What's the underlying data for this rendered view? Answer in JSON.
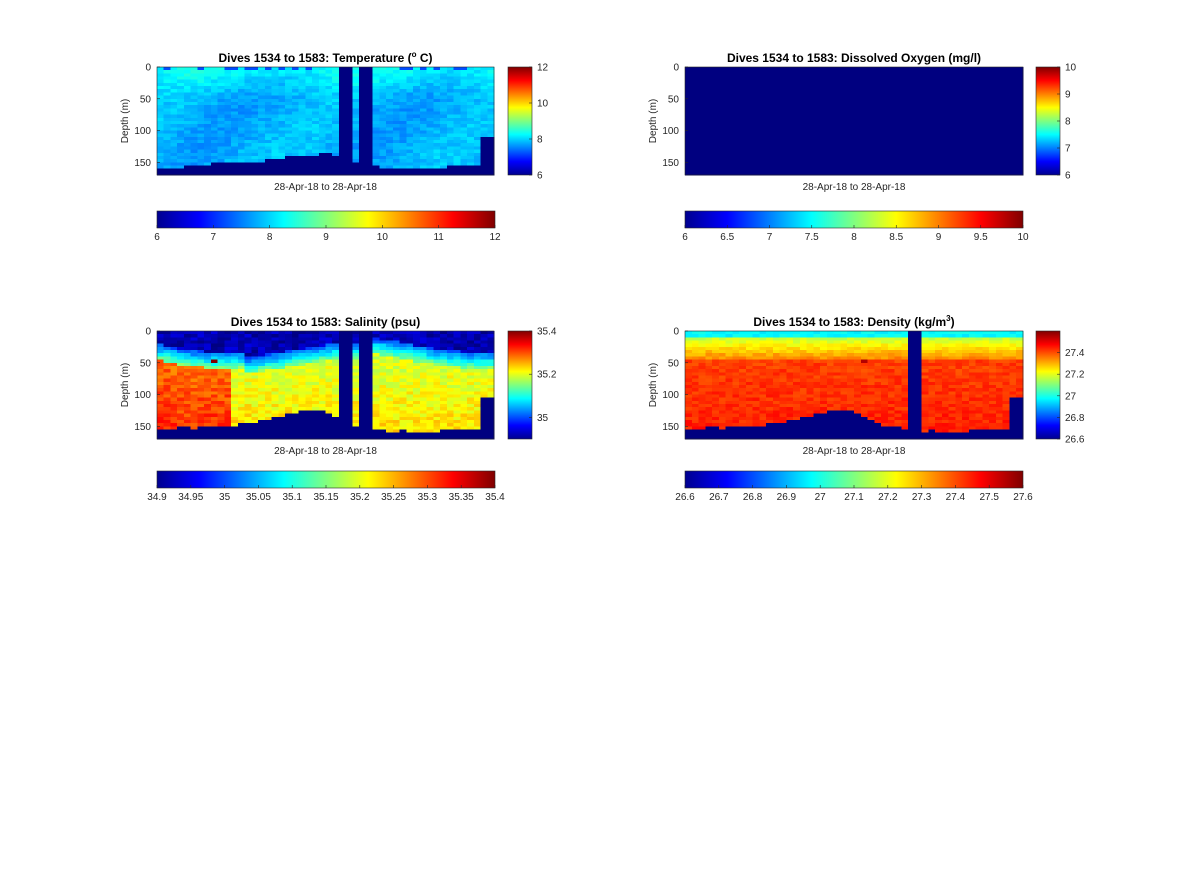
{
  "panels": [
    {
      "id": "temp",
      "title_main": "Dives 1534 to 1583: Temperature (",
      "title_sup": "o",
      "title_tail": " C)",
      "ylabel": "Depth (m)",
      "xlabel": "28-Apr-18 to 28-Apr-18",
      "yticks": [
        "0",
        "50",
        "100",
        "150"
      ],
      "side_colorbar_ticks": [
        "12",
        "10",
        "8",
        "6"
      ],
      "bottom_colorbar_ticks": [
        "6",
        "7",
        "8",
        "9",
        "10",
        "11",
        "12"
      ]
    },
    {
      "id": "oxy",
      "title_main": "Dives 1534 to 1583: Dissolved Oxygen (mg/l)",
      "title_sup": "",
      "title_tail": "",
      "ylabel": "Depth (m)",
      "xlabel": "28-Apr-18 to 28-Apr-18",
      "yticks": [
        "0",
        "50",
        "100",
        "150"
      ],
      "side_colorbar_ticks": [
        "10",
        "9",
        "8",
        "7",
        "6"
      ],
      "bottom_colorbar_ticks": [
        "6",
        "6.5",
        "7",
        "7.5",
        "8",
        "8.5",
        "9",
        "9.5",
        "10"
      ]
    },
    {
      "id": "sal",
      "title_main": "Dives 1534 to 1583: Salinity (psu)",
      "title_sup": "",
      "title_tail": "",
      "ylabel": "Depth (m)",
      "xlabel": "28-Apr-18 to 28-Apr-18",
      "yticks": [
        "0",
        "50",
        "100",
        "150"
      ],
      "side_colorbar_ticks": [
        "35.4",
        "35.2",
        "35"
      ],
      "bottom_colorbar_ticks": [
        "34.9",
        "34.95",
        "35",
        "35.05",
        "35.1",
        "35.15",
        "35.2",
        "35.25",
        "35.3",
        "35.35",
        "35.4"
      ]
    },
    {
      "id": "dens",
      "title_main": "Dives 1534 to 1583: Density (kg/m",
      "title_sup": "3",
      "title_tail": ")",
      "ylabel": "Depth (m)",
      "xlabel": "28-Apr-18 to 28-Apr-18",
      "yticks": [
        "0",
        "50",
        "100",
        "150"
      ],
      "side_colorbar_ticks": [
        "27.4",
        "27.2",
        "27",
        "26.8",
        "26.6"
      ],
      "bottom_colorbar_ticks": [
        "26.6",
        "26.7",
        "26.8",
        "26.9",
        "27",
        "27.1",
        "27.2",
        "27.3",
        "27.4",
        "27.5",
        "27.6"
      ]
    }
  ],
  "chart_data": [
    {
      "type": "heatmap",
      "title": "Dives 1534 to 1583: Temperature (o C)",
      "ylabel": "Depth (m)",
      "xlabel": "28-Apr-18 to 28-Apr-18",
      "ylim": [
        0,
        170
      ],
      "colormap": "jet",
      "clim": [
        6,
        12
      ],
      "surface_value": 8.3,
      "deep_value": 7.8,
      "fill_value": 6,
      "gap_dives": [
        27,
        28,
        30,
        31
      ],
      "bottom_depth_profile": [
        160,
        162,
        160,
        158,
        157,
        157,
        155,
        153,
        152,
        150,
        149,
        148,
        150,
        152,
        150,
        149,
        147,
        145,
        143,
        141,
        139,
        139,
        139,
        138,
        137,
        136,
        138,
        142,
        150,
        150,
        152,
        156,
        157,
        158,
        160,
        160,
        158,
        159,
        160,
        161,
        161,
        160,
        159,
        157,
        156,
        155,
        157,
        157,
        110,
        108
      ]
    },
    {
      "type": "heatmap",
      "title": "Dives 1534 to 1583: Dissolved Oxygen (mg/l)",
      "ylabel": "Depth (m)",
      "xlabel": "28-Apr-18 to 28-Apr-18",
      "ylim": [
        0,
        170
      ],
      "colormap": "jet",
      "clim": [
        6,
        10
      ],
      "all_values": 6
    },
    {
      "type": "heatmap",
      "title": "Dives 1534 to 1583: Salinity (psu)",
      "ylabel": "Depth (m)",
      "xlabel": "28-Apr-18 to 28-Apr-18",
      "ylim": [
        0,
        170
      ],
      "colormap": "jet",
      "clim": [
        34.9,
        35.4
      ],
      "surface_value": 34.9,
      "deep_value": 35.27,
      "mid_value": 35.15,
      "fill_value": 34.9,
      "gap_dives": [
        27,
        28,
        30,
        31
      ],
      "bottom_depth_profile": [
        155,
        156,
        154,
        152,
        151,
        153,
        150,
        148,
        152,
        149,
        148,
        150,
        147,
        145,
        143,
        141,
        139,
        137,
        133,
        130,
        128,
        126,
        124,
        124,
        125,
        130,
        135,
        140,
        145,
        148,
        150,
        152,
        155,
        156,
        158,
        158,
        157,
        158,
        159,
        160,
        160,
        159,
        157,
        156,
        155,
        154,
        156,
        155,
        105,
        103
      ]
    },
    {
      "type": "heatmap",
      "title": "Dives 1534 to 1583: Density (kg/m3)",
      "ylabel": "Depth (m)",
      "xlabel": "28-Apr-18 to 28-Apr-18",
      "ylim": [
        0,
        170
      ],
      "colormap": "jet",
      "clim": [
        26.6,
        27.6
      ],
      "surface_value": 26.9,
      "deep_value": 27.4,
      "fill_value": 26.6,
      "gap_dives": [
        33,
        34
      ],
      "bottom_depth_profile": [
        155,
        156,
        154,
        152,
        151,
        153,
        150,
        148,
        152,
        149,
        148,
        150,
        147,
        145,
        143,
        141,
        139,
        137,
        133,
        130,
        128,
        126,
        124,
        124,
        125,
        130,
        135,
        140,
        145,
        148,
        150,
        152,
        155,
        156,
        158,
        158,
        157,
        158,
        159,
        160,
        160,
        159,
        157,
        156,
        155,
        154,
        156,
        155,
        105,
        103
      ]
    }
  ]
}
